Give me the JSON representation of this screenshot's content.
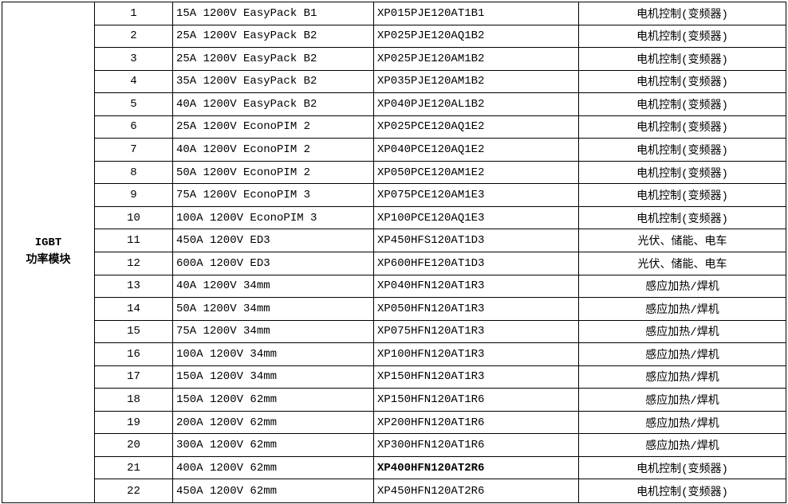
{
  "table": {
    "category": {
      "line1": "IGBT",
      "line2": "功率模块"
    },
    "colors": {
      "background": "#ffffff",
      "text": "#000000",
      "border": "#000000"
    },
    "rows": [
      {
        "no": "1",
        "spec": "15A 1200V EasyPack B1",
        "part": "XP015PJE120AT1B1",
        "app": "电机控制(变频器)",
        "part_bold": false
      },
      {
        "no": "2",
        "spec": "25A 1200V EasyPack B2",
        "part": "XP025PJE120AQ1B2",
        "app": "电机控制(变频器)",
        "part_bold": false
      },
      {
        "no": "3",
        "spec": "25A 1200V EasyPack B2",
        "part": "XP025PJE120AM1B2",
        "app": "电机控制(变频器)",
        "part_bold": false
      },
      {
        "no": "4",
        "spec": "35A 1200V EasyPack B2",
        "part": "XP035PJE120AM1B2",
        "app": "电机控制(变频器)",
        "part_bold": false
      },
      {
        "no": "5",
        "spec": "40A 1200V EasyPack B2",
        "part": "XP040PJE120AL1B2",
        "app": "电机控制(变频器)",
        "part_bold": false
      },
      {
        "no": "6",
        "spec": "25A 1200V EconoPIM 2",
        "part": "XP025PCE120AQ1E2",
        "app": "电机控制(变频器)",
        "part_bold": false
      },
      {
        "no": "7",
        "spec": "40A 1200V EconoPIM 2",
        "part": "XP040PCE120AQ1E2",
        "app": "电机控制(变频器)",
        "part_bold": false
      },
      {
        "no": "8",
        "spec": "50A 1200V EconoPIM 2",
        "part": "XP050PCE120AM1E2",
        "app": "电机控制(变频器)",
        "part_bold": false
      },
      {
        "no": "9",
        "spec": "75A 1200V EconoPIM 3",
        "part": "XP075PCE120AM1E3",
        "app": "电机控制(变频器)",
        "part_bold": false
      },
      {
        "no": "10",
        "spec": "100A 1200V EconoPIM 3",
        "part": "XP100PCE120AQ1E3",
        "app": "电机控制(变频器)",
        "part_bold": false
      },
      {
        "no": "11",
        "spec": "450A 1200V ED3",
        "part": "XP450HFS120AT1D3",
        "app": "光伏、储能、电车",
        "part_bold": false
      },
      {
        "no": "12",
        "spec": "600A 1200V ED3",
        "part": "XP600HFE120AT1D3",
        "app": "光伏、储能、电车",
        "part_bold": false
      },
      {
        "no": "13",
        "spec": "40A 1200V 34mm",
        "part": "XP040HFN120AT1R3",
        "app": "感应加热/焊机",
        "part_bold": false
      },
      {
        "no": "14",
        "spec": "50A 1200V 34mm",
        "part": "XP050HFN120AT1R3",
        "app": "感应加热/焊机",
        "part_bold": false
      },
      {
        "no": "15",
        "spec": "75A 1200V 34mm",
        "part": "XP075HFN120AT1R3",
        "app": "感应加热/焊机",
        "part_bold": false
      },
      {
        "no": "16",
        "spec": "100A 1200V 34mm",
        "part": "XP100HFN120AT1R3",
        "app": "感应加热/焊机",
        "part_bold": false
      },
      {
        "no": "17",
        "spec": "150A 1200V 34mm",
        "part": "XP150HFN120AT1R3",
        "app": "感应加热/焊机",
        "part_bold": false
      },
      {
        "no": "18",
        "spec": "150A 1200V 62mm",
        "part": "XP150HFN120AT1R6",
        "app": "感应加热/焊机",
        "part_bold": false
      },
      {
        "no": "19",
        "spec": "200A 1200V 62mm",
        "part": "XP200HFN120AT1R6",
        "app": "感应加热/焊机",
        "part_bold": false
      },
      {
        "no": "20",
        "spec": "300A 1200V 62mm",
        "part": "XP300HFN120AT1R6",
        "app": "感应加热/焊机",
        "part_bold": false
      },
      {
        "no": "21",
        "spec": "400A 1200V 62mm",
        "part": "XP400HFN120AT2R6",
        "app": "电机控制(变频器)",
        "part_bold": true
      },
      {
        "no": "22",
        "spec": "450A 1200V 62mm",
        "part": "XP450HFN120AT2R6",
        "app": "电机控制(变频器)",
        "part_bold": false
      }
    ]
  }
}
